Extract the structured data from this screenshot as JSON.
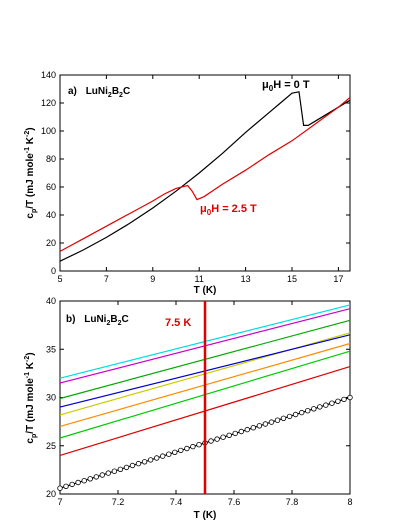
{
  "chart_data": [
    {
      "type": "line",
      "panel_label": "a)",
      "compound": {
        "base": "LuNi",
        "sub1": "2",
        "mid": "B",
        "sub2": "2",
        "end": "C"
      },
      "xlabel": "T (K)",
      "ylabel": {
        "main": "c",
        "sub": "p",
        "rest": "/T (mJ mole",
        "sup1": "-1",
        "mid": " K",
        "sup2": "-2",
        "close": ")"
      },
      "xlim": [
        5,
        17.5
      ],
      "ylim": [
        0,
        140
      ],
      "xticks": [
        5,
        7,
        9,
        11,
        13,
        15,
        17
      ],
      "yticks": [
        0,
        20,
        40,
        60,
        80,
        100,
        120,
        140
      ],
      "series": [
        {
          "name": {
            "pre": "μ",
            "sub": "0",
            "post": "H = 0 T"
          },
          "color": "#000000",
          "x": [
            5,
            6,
            7,
            8,
            9,
            10,
            11,
            12,
            13,
            14,
            14.5,
            15,
            15.3,
            15.5,
            15.7,
            16,
            16.5,
            17,
            17.5
          ],
          "y": [
            7,
            15,
            24,
            34,
            45,
            57,
            70,
            84,
            99,
            113,
            120,
            127,
            128,
            104,
            104,
            107,
            112,
            117,
            122
          ]
        },
        {
          "name": {
            "pre": "μ",
            "sub": "0",
            "post": "H = 2.5 T"
          },
          "color": "#e00000",
          "x": [
            5,
            6,
            7,
            8,
            9,
            9.5,
            10,
            10.5,
            10.7,
            10.9,
            11.2,
            12,
            13,
            14,
            15,
            16,
            17,
            17.5
          ],
          "y": [
            14,
            23,
            32,
            41,
            50,
            55,
            59,
            61,
            57,
            51,
            53,
            62,
            72,
            83,
            93,
            105,
            117,
            124
          ]
        }
      ],
      "annotations": [
        {
          "text": {
            "pre": "μ",
            "sub": "0",
            "post": "H = 0 T"
          },
          "color": "#000000"
        },
        {
          "text": {
            "pre": "μ",
            "sub": "0",
            "post": "H = 2.5 T"
          },
          "color": "#e00000"
        }
      ]
    },
    {
      "type": "line",
      "panel_label": "b)",
      "compound": {
        "base": "LuNi",
        "sub1": "2",
        "mid": "B",
        "sub2": "2",
        "end": "C"
      },
      "xlabel": "T (K)",
      "ylabel": {
        "main": "c",
        "sub": "p",
        "rest": "/T (mJ mole",
        "sup1": "-1",
        "mid": " K",
        "sup2": "-2",
        "close": ")"
      },
      "xlim": [
        7,
        8
      ],
      "ylim": [
        20,
        40
      ],
      "xticks": [
        7,
        7.2,
        7.4,
        7.6,
        7.8,
        8
      ],
      "yticks": [
        20,
        25,
        30,
        35,
        40
      ],
      "vline": {
        "x": 7.5,
        "label": "7.5 K",
        "color": "#e00000"
      },
      "series": [
        {
          "color": "#000000",
          "markers": true,
          "x": [
            7,
            8
          ],
          "y": [
            20.6,
            30.0
          ]
        },
        {
          "color": "#e00000",
          "x": [
            7,
            8
          ],
          "y": [
            24.0,
            33.2
          ]
        },
        {
          "color": "#00cc00",
          "x": [
            7,
            8
          ],
          "y": [
            25.8,
            34.8
          ]
        },
        {
          "color": "#ff8c00",
          "x": [
            7,
            8
          ],
          "y": [
            27.0,
            35.6
          ]
        },
        {
          "color": "#cccc00",
          "x": [
            7,
            8
          ],
          "y": [
            28.2,
            36.7
          ]
        },
        {
          "color": "#0000cc",
          "x": [
            7,
            8
          ],
          "y": [
            29.0,
            36.5
          ]
        },
        {
          "color": "#00aa00",
          "x": [
            7,
            8
          ],
          "y": [
            29.9,
            38.0
          ]
        },
        {
          "color": "#cc00cc",
          "x": [
            7,
            8
          ],
          "y": [
            31.5,
            39.2
          ]
        },
        {
          "color": "#00dddd",
          "x": [
            7,
            8
          ],
          "y": [
            32.0,
            39.6
          ]
        }
      ]
    }
  ]
}
